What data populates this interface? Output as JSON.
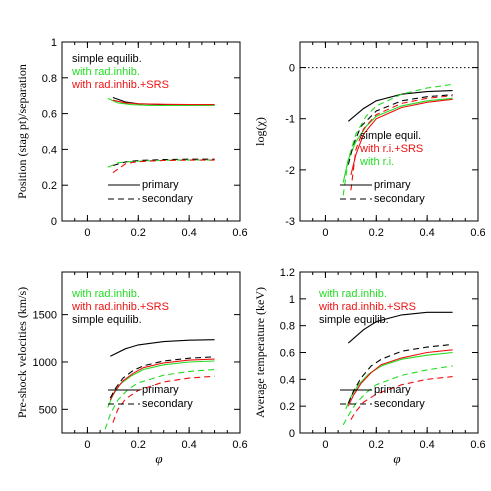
{
  "styles": {
    "primary_dash": "solid",
    "secondary_dash": "dashed",
    "colors": {
      "black": "#000000",
      "green": "#22dd22",
      "red": "#ee1111"
    }
  },
  "chart_data": [
    {
      "type": "line",
      "ylabel": "Position (stag pt)/separation",
      "xlabel": "",
      "xlim": [
        -0.1,
        0.6
      ],
      "ylim": [
        0,
        1
      ],
      "xticks": [
        "0",
        "0.2",
        "0.4",
        "0.6"
      ],
      "yticks": [
        "0",
        "0.2",
        "0.4",
        "0.6",
        "0.8",
        "1"
      ],
      "legend_labels": [
        {
          "text": "simple equilib.",
          "color": "black"
        },
        {
          "text": "with rad.inhib.",
          "color": "green"
        },
        {
          "text": "with rad.inhib.+SRS",
          "color": "red"
        }
      ],
      "style_legend": [
        {
          "text": "primary",
          "dash": "solid"
        },
        {
          "text": "secondary",
          "dash": "dashed"
        }
      ],
      "series": [
        {
          "color": "black",
          "dash": "solid",
          "x": [
            0.1,
            0.15,
            0.2,
            0.3,
            0.4,
            0.5
          ],
          "y": [
            0.69,
            0.665,
            0.655,
            0.65,
            0.648,
            0.648
          ]
        },
        {
          "color": "green",
          "dash": "solid",
          "x": [
            0.08,
            0.12,
            0.17,
            0.25,
            0.35,
            0.5
          ],
          "y": [
            0.685,
            0.66,
            0.65,
            0.645,
            0.645,
            0.645
          ]
        },
        {
          "color": "red",
          "dash": "solid",
          "x": [
            0.1,
            0.15,
            0.2,
            0.3,
            0.4,
            0.5
          ],
          "y": [
            0.675,
            0.66,
            0.655,
            0.652,
            0.65,
            0.65
          ]
        },
        {
          "color": "black",
          "dash": "dashed",
          "x": [
            0.1,
            0.15,
            0.2,
            0.3,
            0.4,
            0.5
          ],
          "y": [
            0.31,
            0.33,
            0.338,
            0.343,
            0.345,
            0.345
          ]
        },
        {
          "color": "green",
          "dash": "dashed",
          "x": [
            0.08,
            0.12,
            0.17,
            0.25,
            0.35,
            0.5
          ],
          "y": [
            0.3,
            0.325,
            0.332,
            0.337,
            0.34,
            0.34
          ]
        },
        {
          "color": "red",
          "dash": "dashed",
          "x": [
            0.1,
            0.15,
            0.2,
            0.3,
            0.4,
            0.5
          ],
          "y": [
            0.27,
            0.32,
            0.332,
            0.338,
            0.34,
            0.34
          ]
        }
      ]
    },
    {
      "type": "line",
      "ylabel": "log(χ)",
      "xlabel": "",
      "xlim": [
        -0.1,
        0.6
      ],
      "ylim": [
        -3,
        0.5
      ],
      "xticks": [
        "0",
        "0.2",
        "0.4",
        "0.6"
      ],
      "yticks": [
        "-3",
        "-2",
        "-1",
        "0"
      ],
      "reference_line": {
        "y": 0,
        "style": "dotted"
      },
      "legend_labels": [
        {
          "text": "simple equil.",
          "color": "black"
        },
        {
          "text": "with r.i.+SRS",
          "color": "red"
        },
        {
          "text": "with r.i.",
          "color": "green"
        }
      ],
      "style_legend": [
        {
          "text": "primary",
          "dash": "solid"
        },
        {
          "text": "secondary",
          "dash": "dashed"
        }
      ],
      "series": [
        {
          "color": "black",
          "dash": "solid",
          "x": [
            0.09,
            0.15,
            0.2,
            0.3,
            0.4,
            0.5
          ],
          "y": [
            -1.05,
            -0.8,
            -0.65,
            -0.52,
            -0.47,
            -0.45
          ]
        },
        {
          "color": "green",
          "dash": "solid",
          "x": [
            0.07,
            0.09,
            0.12,
            0.16,
            0.2,
            0.3,
            0.4,
            0.5
          ],
          "y": [
            -2.25,
            -1.8,
            -1.45,
            -1.15,
            -0.95,
            -0.75,
            -0.65,
            -0.6
          ]
        },
        {
          "color": "red",
          "dash": "solid",
          "x": [
            0.1,
            0.12,
            0.15,
            0.2,
            0.3,
            0.4,
            0.5
          ],
          "y": [
            -2.1,
            -1.7,
            -1.3,
            -1.0,
            -0.78,
            -0.68,
            -0.62
          ]
        },
        {
          "color": "black",
          "dash": "dashed",
          "x": [
            0.09,
            0.11,
            0.14,
            0.2,
            0.3,
            0.4,
            0.5
          ],
          "y": [
            -1.9,
            -1.5,
            -1.15,
            -0.85,
            -0.65,
            -0.57,
            -0.53
          ]
        },
        {
          "color": "green",
          "dash": "dashed",
          "x": [
            0.07,
            0.09,
            0.12,
            0.16,
            0.2,
            0.3,
            0.4,
            0.5
          ],
          "y": [
            -2.5,
            -1.8,
            -1.3,
            -0.95,
            -0.75,
            -0.52,
            -0.4,
            -0.33
          ]
        },
        {
          "color": "red",
          "dash": "dashed",
          "x": [
            0.1,
            0.12,
            0.15,
            0.2,
            0.3,
            0.4,
            0.5
          ],
          "y": [
            -2.4,
            -1.6,
            -1.2,
            -0.92,
            -0.7,
            -0.6,
            -0.55
          ]
        }
      ]
    },
    {
      "type": "line",
      "ylabel": "Pre-shock velocities (km/s)",
      "xlabel": "φ",
      "xlim": [
        -0.1,
        0.6
      ],
      "ylim": [
        250,
        1950
      ],
      "xticks": [
        "0",
        "0.2",
        "0.4",
        "0.6"
      ],
      "yticks": [
        "500",
        "1000",
        "1500"
      ],
      "legend_labels": [
        {
          "text": "with rad.inhib.",
          "color": "green"
        },
        {
          "text": "with rad.inhib.+SRS",
          "color": "red"
        },
        {
          "text": "simple equilib.",
          "color": "black"
        }
      ],
      "style_legend": [
        {
          "text": "primary",
          "dash": "solid"
        },
        {
          "text": "secondary",
          "dash": "dashed"
        }
      ],
      "series": [
        {
          "color": "black",
          "dash": "solid",
          "x": [
            0.09,
            0.15,
            0.2,
            0.3,
            0.4,
            0.5
          ],
          "y": [
            1060,
            1140,
            1180,
            1215,
            1230,
            1235
          ]
        },
        {
          "color": "green",
          "dash": "solid",
          "x": [
            0.08,
            0.1,
            0.13,
            0.17,
            0.22,
            0.3,
            0.4,
            0.5
          ],
          "y": [
            520,
            650,
            770,
            850,
            920,
            970,
            1000,
            1010
          ]
        },
        {
          "color": "red",
          "dash": "solid",
          "x": [
            0.09,
            0.11,
            0.14,
            0.18,
            0.22,
            0.3,
            0.4,
            0.5
          ],
          "y": [
            600,
            700,
            800,
            880,
            940,
            990,
            1020,
            1030
          ]
        },
        {
          "color": "black",
          "dash": "dashed",
          "x": [
            0.09,
            0.11,
            0.14,
            0.18,
            0.22,
            0.3,
            0.4,
            0.5
          ],
          "y": [
            620,
            720,
            830,
            910,
            960,
            1010,
            1040,
            1055
          ]
        },
        {
          "color": "green",
          "dash": "dashed",
          "x": [
            0.07,
            0.09,
            0.12,
            0.16,
            0.2,
            0.3,
            0.4,
            0.5
          ],
          "y": [
            290,
            450,
            600,
            710,
            780,
            860,
            900,
            920
          ]
        },
        {
          "color": "red",
          "dash": "dashed",
          "x": [
            0.1,
            0.12,
            0.15,
            0.2,
            0.3,
            0.4,
            0.5
          ],
          "y": [
            360,
            500,
            610,
            700,
            790,
            830,
            850
          ]
        }
      ]
    },
    {
      "type": "line",
      "ylabel": "Average temperature (keV)",
      "xlabel": "φ",
      "xlim": [
        -0.1,
        0.6
      ],
      "ylim": [
        0,
        1.2
      ],
      "xticks": [
        "0",
        "0.2",
        "0.4",
        "0.6"
      ],
      "yticks": [
        "0",
        "0.2",
        "0.4",
        "0.6",
        "0.8",
        "1",
        "1.2"
      ],
      "legend_labels": [
        {
          "text": "with rad.inhib.",
          "color": "green"
        },
        {
          "text": "with rad.inhib.+SRS",
          "color": "red"
        },
        {
          "text": "simple equilib.",
          "color": "black"
        }
      ],
      "style_legend": [
        {
          "text": "primary",
          "dash": "solid"
        },
        {
          "text": "secondary",
          "dash": "dashed"
        }
      ],
      "series": [
        {
          "color": "black",
          "dash": "solid",
          "x": [
            0.09,
            0.15,
            0.2,
            0.3,
            0.4,
            0.5
          ],
          "y": [
            0.67,
            0.77,
            0.83,
            0.88,
            0.9,
            0.9
          ]
        },
        {
          "color": "green",
          "dash": "solid",
          "x": [
            0.08,
            0.1,
            0.13,
            0.17,
            0.22,
            0.3,
            0.4,
            0.5
          ],
          "y": [
            0.18,
            0.27,
            0.36,
            0.44,
            0.5,
            0.55,
            0.58,
            0.6
          ]
        },
        {
          "color": "red",
          "dash": "solid",
          "x": [
            0.09,
            0.11,
            0.14,
            0.18,
            0.22,
            0.3,
            0.4,
            0.5
          ],
          "y": [
            0.2,
            0.28,
            0.37,
            0.45,
            0.51,
            0.56,
            0.6,
            0.62
          ]
        },
        {
          "color": "black",
          "dash": "dashed",
          "x": [
            0.09,
            0.11,
            0.14,
            0.18,
            0.22,
            0.3,
            0.4,
            0.5
          ],
          "y": [
            0.22,
            0.31,
            0.41,
            0.5,
            0.55,
            0.61,
            0.64,
            0.66
          ]
        },
        {
          "color": "green",
          "dash": "dashed",
          "x": [
            0.07,
            0.09,
            0.12,
            0.16,
            0.2,
            0.3,
            0.4,
            0.5
          ],
          "y": [
            0.06,
            0.13,
            0.22,
            0.3,
            0.36,
            0.43,
            0.47,
            0.5
          ]
        },
        {
          "color": "red",
          "dash": "dashed",
          "x": [
            0.1,
            0.12,
            0.15,
            0.2,
            0.3,
            0.4,
            0.5
          ],
          "y": [
            0.1,
            0.16,
            0.23,
            0.29,
            0.36,
            0.4,
            0.42
          ]
        }
      ]
    }
  ]
}
